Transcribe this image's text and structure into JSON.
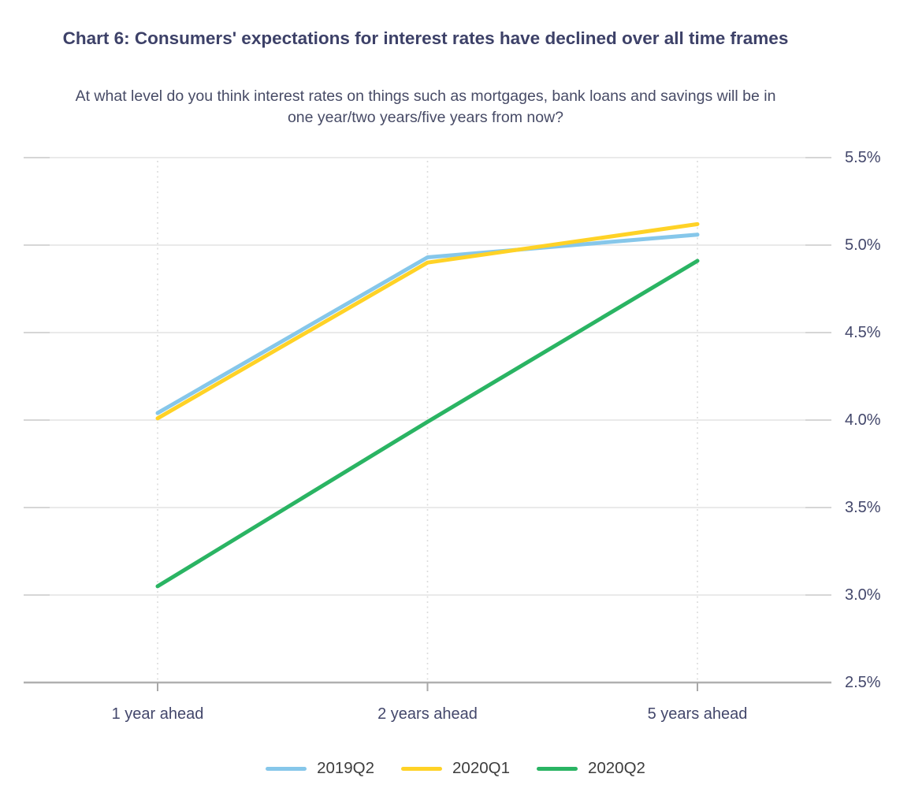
{
  "chart_data": {
    "type": "line",
    "title": "Chart 6: Consumers' expectations for interest rates have declined over all time frames",
    "subtitle": "At what level do you think interest rates on things such as mortgages, bank loans and savings will be in one year/two years/five years from now?",
    "categories": [
      "1 year ahead",
      "2 years ahead",
      "5 years ahead"
    ],
    "series": [
      {
        "name": "2019Q2",
        "color": "#86c7ea",
        "values": [
          4.04,
          4.93,
          5.06
        ]
      },
      {
        "name": "2020Q1",
        "color": "#ffd226",
        "values": [
          4.01,
          4.9,
          5.12
        ]
      },
      {
        "name": "2020Q2",
        "color": "#2ab463",
        "values": [
          3.05,
          3.99,
          4.91
        ]
      }
    ],
    "ylim": [
      2.5,
      5.5
    ],
    "y_tick_step": 0.5,
    "y_tick_labels": [
      "5.5%",
      "5.0%",
      "4.5%",
      "4.0%",
      "3.5%",
      "3.0%",
      "2.5%"
    ],
    "xlabel": "",
    "ylabel": "",
    "grid": true,
    "legend_position": "bottom"
  },
  "theme": {
    "title_color": "#3d4168",
    "subtitle_color": "#474b66",
    "axis_label_color": "#43476b",
    "legend_text_color": "#3d3d3d",
    "gridline_color": "#eaeaea",
    "gridline_tick_color": "#d6d6d6",
    "dotted_line_color": "#dcdcdc",
    "axis_line_color": "#b0b0b0",
    "axis_tick_color": "#a8a8a8",
    "background": "#ffffff"
  }
}
